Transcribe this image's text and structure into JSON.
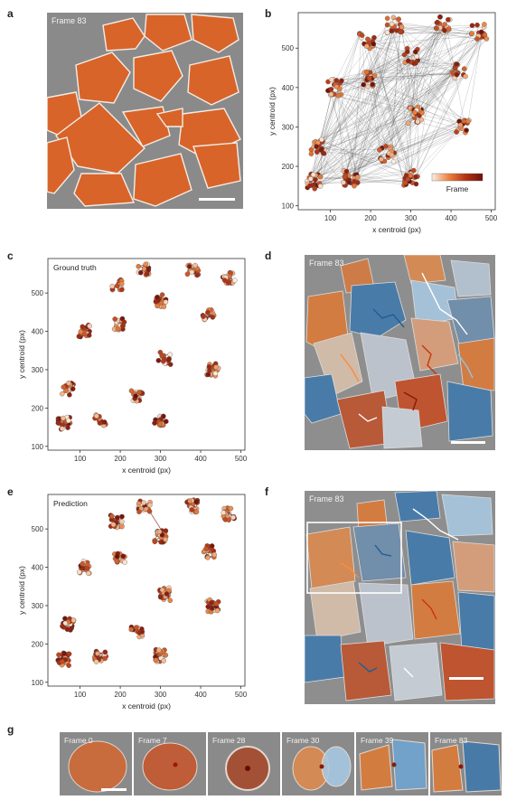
{
  "panels": {
    "a": "a",
    "b": "b",
    "c": "c",
    "d": "d",
    "e": "e",
    "f": "f",
    "g": "g"
  },
  "panel_a": {
    "frame_label": "Frame 83"
  },
  "panel_b": {
    "xlabel": "x centroid (px)",
    "ylabel": "y centroid (px)",
    "legend_label": "Frame",
    "xticks": [
      "100",
      "200",
      "300",
      "400",
      "500"
    ],
    "yticks": [
      "100",
      "200",
      "300",
      "400",
      "500"
    ]
  },
  "panel_c": {
    "title": "Ground truth",
    "xlabel": "x centroid (px)",
    "ylabel": "y centroid (px)",
    "xticks": [
      "100",
      "200",
      "300",
      "400",
      "500"
    ],
    "yticks": [
      "100",
      "200",
      "300",
      "400",
      "500"
    ]
  },
  "panel_d": {
    "frame_label": "Frame 83"
  },
  "panel_e": {
    "title": "Prediction",
    "xlabel": "x centroid (px)",
    "ylabel": "y centroid (px)",
    "xticks": [
      "100",
      "200",
      "300",
      "400",
      "500"
    ],
    "yticks": [
      "100",
      "200",
      "300",
      "400",
      "500"
    ]
  },
  "panel_f": {
    "frame_label": "Frame 83"
  },
  "panel_g": {
    "frames": [
      "Frame 0",
      "Frame 7",
      "Frame 28",
      "Frame 30",
      "Frame 39",
      "Frame 83"
    ]
  },
  "colors": {
    "cell_orange": "#d8642a",
    "frame_light": "#fbeee3",
    "frame_dark": "#8a1a0a",
    "blue": "#3f7fb3",
    "light_blue": "#a9d2ee",
    "bg_gray": "#8e8e8e"
  }
}
